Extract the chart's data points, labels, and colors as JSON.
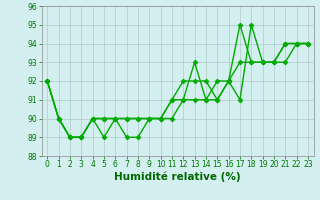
{
  "x": [
    0,
    1,
    2,
    3,
    4,
    5,
    6,
    7,
    8,
    9,
    10,
    11,
    12,
    13,
    14,
    15,
    16,
    17,
    18,
    19,
    20,
    21,
    22,
    23
  ],
  "series": [
    [
      92,
      90,
      89,
      89,
      90,
      89,
      90,
      89,
      89,
      90,
      90,
      90,
      91,
      93,
      91,
      91,
      92,
      91,
      95,
      93,
      93,
      94,
      94,
      94
    ],
    [
      92,
      90,
      89,
      89,
      90,
      90,
      90,
      90,
      90,
      90,
      90,
      91,
      92,
      92,
      92,
      91,
      92,
      95,
      93,
      93,
      93,
      94,
      94,
      94
    ],
    [
      92,
      90,
      89,
      89,
      90,
      90,
      90,
      90,
      90,
      90,
      90,
      91,
      91,
      91,
      91,
      92,
      92,
      93,
      93,
      93,
      93,
      93,
      94,
      94
    ]
  ],
  "line_color": "#00aa00",
  "marker": "D",
  "markersize": 2.5,
  "linewidth": 1.0,
  "xlabel": "Humidité relative (%)",
  "xlim": [
    -0.5,
    23.5
  ],
  "ylim": [
    88,
    96
  ],
  "yticks": [
    88,
    89,
    90,
    91,
    92,
    93,
    94,
    95,
    96
  ],
  "xticks": [
    0,
    1,
    2,
    3,
    4,
    5,
    6,
    7,
    8,
    9,
    10,
    11,
    12,
    13,
    14,
    15,
    16,
    17,
    18,
    19,
    20,
    21,
    22,
    23
  ],
  "background_color": "#d4efef",
  "grid_color": "#b0c8c8",
  "tick_label_color": "#007700",
  "xlabel_color": "#006600",
  "tick_fontsize": 5.5,
  "xlabel_fontsize": 7.5,
  "fig_width": 3.2,
  "fig_height": 2.0,
  "dpi": 100
}
